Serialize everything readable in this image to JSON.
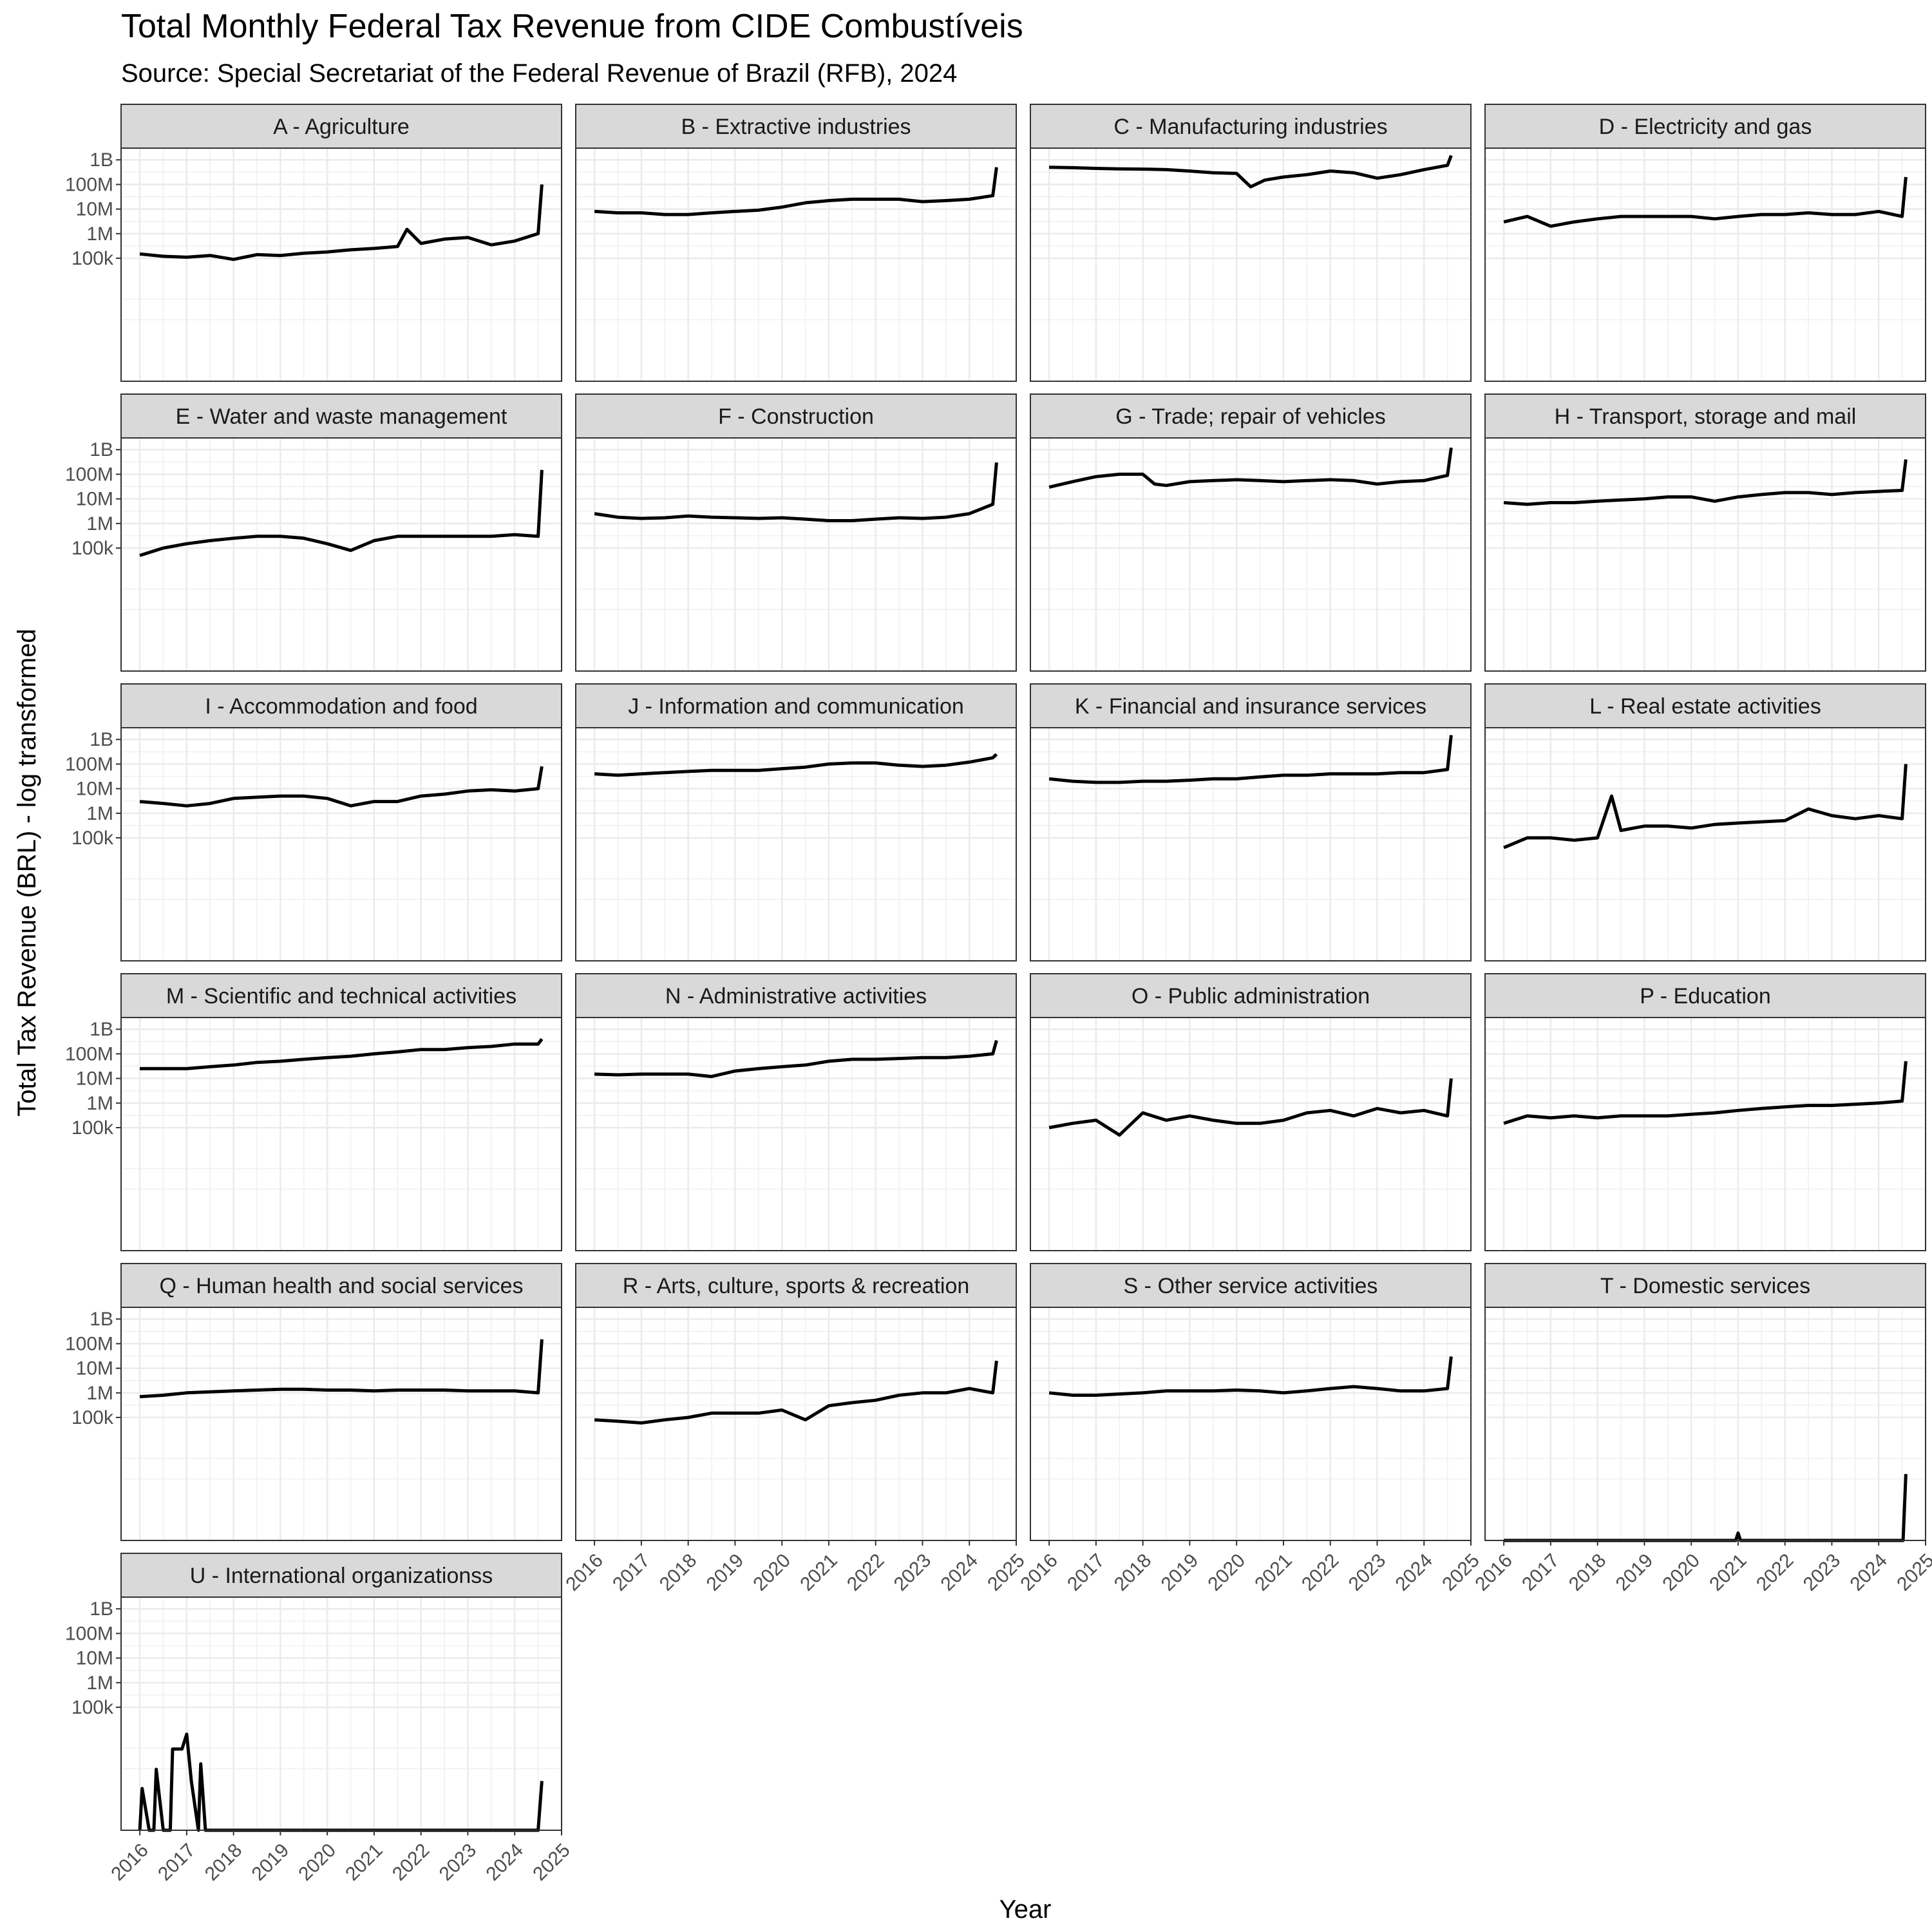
{
  "chart_data": {
    "type": "line",
    "facet": "small-multiples",
    "title": "Total Monthly Federal Tax Revenue from CIDE Combustíveis",
    "subtitle": "Source: Special Secretariat of the Federal Revenue of Brazil (RFB), 2024",
    "xlabel": "Year",
    "ylabel": "Total Tax Revenue (BRL) - log transformed",
    "x_ticks": [
      "2016",
      "2017",
      "2018",
      "2019",
      "2020",
      "2021",
      "2022",
      "2023",
      "2024",
      "2025"
    ],
    "xlim": [
      2015.6,
      2025.0
    ],
    "y_scale": "log10",
    "y_ticks": [
      {
        "value": 100000,
        "label": "100k"
      },
      {
        "value": 1000000,
        "label": "1M"
      },
      {
        "value": 10000000,
        "label": "10M"
      },
      {
        "value": 100000000,
        "label": "100M"
      },
      {
        "value": 1000000000,
        "label": "1B"
      }
    ],
    "ylim": [
      1,
      3000000000
    ],
    "grid": true,
    "series_color": "#000000",
    "series": [
      {
        "name": "A - Agriculture",
        "x": [
          2016.0,
          2016.5,
          2017.0,
          2017.5,
          2018.0,
          2018.5,
          2019.0,
          2019.5,
          2020.0,
          2020.5,
          2021.0,
          2021.5,
          2021.7,
          2022.0,
          2022.5,
          2023.0,
          2023.5,
          2024.0,
          2024.5,
          2024.58
        ],
        "y": [
          150000,
          120000,
          110000,
          130000,
          90000,
          140000,
          130000,
          160000,
          180000,
          220000,
          250000,
          300000,
          1500000,
          400000,
          600000,
          700000,
          350000,
          500000,
          1000000,
          100000000
        ]
      },
      {
        "name": "B - Extractive industries",
        "x": [
          2016.0,
          2016.5,
          2017.0,
          2017.5,
          2018.0,
          2018.5,
          2019.0,
          2019.5,
          2020.0,
          2020.5,
          2021.0,
          2021.5,
          2022.0,
          2022.5,
          2023.0,
          2023.5,
          2024.0,
          2024.5,
          2024.58
        ],
        "y": [
          8000000,
          7000000,
          7000000,
          6000000,
          6000000,
          7000000,
          8000000,
          9000000,
          12000000,
          18000000,
          22000000,
          25000000,
          25000000,
          25000000,
          20000000,
          22000000,
          25000000,
          35000000,
          500000000
        ]
      },
      {
        "name": "C - Manufacturing industries",
        "x": [
          2016.0,
          2016.5,
          2017.0,
          2017.5,
          2018.0,
          2018.5,
          2019.0,
          2019.5,
          2020.0,
          2020.3,
          2020.6,
          2021.0,
          2021.5,
          2022.0,
          2022.5,
          2023.0,
          2023.5,
          2024.0,
          2024.5,
          2024.58
        ],
        "y": [
          500000000,
          480000000,
          450000000,
          430000000,
          420000000,
          400000000,
          350000000,
          300000000,
          280000000,
          80000000,
          150000000,
          200000000,
          250000000,
          350000000,
          300000000,
          180000000,
          250000000,
          400000000,
          600000000,
          1500000000
        ]
      },
      {
        "name": "D - Electricity and gas",
        "x": [
          2016.0,
          2016.5,
          2017.0,
          2017.5,
          2018.0,
          2018.5,
          2019.0,
          2019.5,
          2020.0,
          2020.5,
          2021.0,
          2021.5,
          2022.0,
          2022.5,
          2023.0,
          2023.5,
          2024.0,
          2024.5,
          2024.58
        ],
        "y": [
          3000000,
          5000000,
          2000000,
          3000000,
          4000000,
          5000000,
          5000000,
          5000000,
          5000000,
          4000000,
          5000000,
          6000000,
          6000000,
          7000000,
          6000000,
          6000000,
          8000000,
          5000000,
          200000000
        ]
      },
      {
        "name": "E - Water and waste management",
        "x": [
          2016.0,
          2016.5,
          2017.0,
          2017.5,
          2018.0,
          2018.5,
          2019.0,
          2019.5,
          2020.0,
          2020.5,
          2021.0,
          2021.5,
          2022.0,
          2022.5,
          2023.0,
          2023.5,
          2024.0,
          2024.5,
          2024.58
        ],
        "y": [
          50000,
          100000,
          150000,
          200000,
          250000,
          300000,
          300000,
          250000,
          150000,
          80000,
          200000,
          300000,
          300000,
          300000,
          300000,
          300000,
          350000,
          300000,
          150000000
        ]
      },
      {
        "name": "F - Construction",
        "x": [
          2016.0,
          2016.5,
          2017.0,
          2017.5,
          2018.0,
          2018.5,
          2019.0,
          2019.5,
          2020.0,
          2020.5,
          2021.0,
          2021.5,
          2022.0,
          2022.5,
          2023.0,
          2023.5,
          2024.0,
          2024.5,
          2024.58
        ],
        "y": [
          2500000,
          1800000,
          1600000,
          1700000,
          2000000,
          1800000,
          1700000,
          1600000,
          1700000,
          1500000,
          1300000,
          1300000,
          1500000,
          1700000,
          1600000,
          1800000,
          2500000,
          6000000,
          300000000
        ]
      },
      {
        "name": "G - Trade; repair of vehicles",
        "x": [
          2016.0,
          2016.5,
          2017.0,
          2017.5,
          2018.0,
          2018.25,
          2018.5,
          2019.0,
          2019.5,
          2020.0,
          2020.5,
          2021.0,
          2021.5,
          2022.0,
          2022.5,
          2023.0,
          2023.5,
          2024.0,
          2024.5,
          2024.58
        ],
        "y": [
          30000000,
          50000000,
          80000000,
          100000000,
          100000000,
          40000000,
          35000000,
          50000000,
          55000000,
          60000000,
          55000000,
          50000000,
          55000000,
          60000000,
          55000000,
          40000000,
          50000000,
          55000000,
          90000000,
          1200000000
        ]
      },
      {
        "name": "H - Transport, storage and mail",
        "x": [
          2016.0,
          2016.5,
          2017.0,
          2017.5,
          2018.0,
          2018.5,
          2019.0,
          2019.5,
          2020.0,
          2020.5,
          2021.0,
          2021.5,
          2022.0,
          2022.5,
          2023.0,
          2023.5,
          2024.0,
          2024.5,
          2024.58
        ],
        "y": [
          7000000,
          6000000,
          7000000,
          7000000,
          8000000,
          9000000,
          10000000,
          12000000,
          12000000,
          8000000,
          12000000,
          15000000,
          18000000,
          18000000,
          15000000,
          18000000,
          20000000,
          22000000,
          400000000
        ]
      },
      {
        "name": "I - Accommodation and food",
        "x": [
          2016.0,
          2016.5,
          2017.0,
          2017.5,
          2018.0,
          2018.5,
          2019.0,
          2019.5,
          2020.0,
          2020.5,
          2021.0,
          2021.5,
          2022.0,
          2022.5,
          2023.0,
          2023.5,
          2024.0,
          2024.5,
          2024.58
        ],
        "y": [
          3000000,
          2500000,
          2000000,
          2500000,
          4000000,
          4500000,
          5000000,
          5000000,
          4000000,
          2000000,
          3000000,
          3000000,
          5000000,
          6000000,
          8000000,
          9000000,
          8000000,
          10000000,
          80000000
        ]
      },
      {
        "name": "J - Information and communication",
        "x": [
          2016.0,
          2016.5,
          2017.0,
          2017.5,
          2018.0,
          2018.5,
          2019.0,
          2019.5,
          2020.0,
          2020.5,
          2021.0,
          2021.5,
          2022.0,
          2022.5,
          2023.0,
          2023.5,
          2024.0,
          2024.5,
          2024.58
        ],
        "y": [
          40000000,
          35000000,
          40000000,
          45000000,
          50000000,
          55000000,
          55000000,
          55000000,
          65000000,
          75000000,
          100000000,
          110000000,
          110000000,
          90000000,
          80000000,
          90000000,
          120000000,
          180000000,
          250000000
        ]
      },
      {
        "name": "K - Financial and insurance services",
        "x": [
          2016.0,
          2016.5,
          2017.0,
          2017.5,
          2018.0,
          2018.5,
          2019.0,
          2019.5,
          2020.0,
          2020.5,
          2021.0,
          2021.5,
          2022.0,
          2022.5,
          2023.0,
          2023.5,
          2024.0,
          2024.5,
          2024.58
        ],
        "y": [
          25000000,
          20000000,
          18000000,
          18000000,
          20000000,
          20000000,
          22000000,
          25000000,
          25000000,
          30000000,
          35000000,
          35000000,
          40000000,
          40000000,
          40000000,
          45000000,
          45000000,
          60000000,
          1500000000
        ]
      },
      {
        "name": "L - Real estate activities",
        "x": [
          2016.0,
          2016.5,
          2017.0,
          2017.5,
          2018.0,
          2018.3,
          2018.5,
          2019.0,
          2019.5,
          2020.0,
          2020.5,
          2021.0,
          2021.5,
          2022.0,
          2022.5,
          2023.0,
          2023.5,
          2024.0,
          2024.5,
          2024.58
        ],
        "y": [
          40000,
          100000,
          100000,
          80000,
          100000,
          5000000,
          200000,
          300000,
          300000,
          250000,
          350000,
          400000,
          450000,
          500000,
          1500000,
          800000,
          600000,
          800000,
          600000,
          100000000
        ]
      },
      {
        "name": "M - Scientific and technical activities",
        "x": [
          2016.0,
          2016.5,
          2017.0,
          2017.5,
          2018.0,
          2018.5,
          2019.0,
          2019.5,
          2020.0,
          2020.5,
          2021.0,
          2021.5,
          2022.0,
          2022.5,
          2023.0,
          2023.5,
          2024.0,
          2024.5,
          2024.58
        ],
        "y": [
          25000000,
          25000000,
          25000000,
          30000000,
          35000000,
          45000000,
          50000000,
          60000000,
          70000000,
          80000000,
          100000000,
          120000000,
          150000000,
          150000000,
          180000000,
          200000000,
          250000000,
          250000000,
          400000000
        ]
      },
      {
        "name": "N - Administrative activities",
        "x": [
          2016.0,
          2016.5,
          2017.0,
          2017.5,
          2018.0,
          2018.5,
          2019.0,
          2019.5,
          2020.0,
          2020.5,
          2021.0,
          2021.5,
          2022.0,
          2022.5,
          2023.0,
          2023.5,
          2024.0,
          2024.5,
          2024.58
        ],
        "y": [
          15000000,
          14000000,
          15000000,
          15000000,
          15000000,
          12000000,
          20000000,
          25000000,
          30000000,
          35000000,
          50000000,
          60000000,
          60000000,
          65000000,
          70000000,
          70000000,
          80000000,
          100000000,
          350000000
        ]
      },
      {
        "name": "O - Public administration",
        "x": [
          2016.0,
          2016.5,
          2017.0,
          2017.5,
          2018.0,
          2018.5,
          2019.0,
          2019.5,
          2020.0,
          2020.5,
          2021.0,
          2021.5,
          2022.0,
          2022.5,
          2023.0,
          2023.5,
          2024.0,
          2024.5,
          2024.58
        ],
        "y": [
          100000,
          150000,
          200000,
          50000,
          400000,
          200000,
          300000,
          200000,
          150000,
          150000,
          200000,
          400000,
          500000,
          300000,
          600000,
          400000,
          500000,
          300000,
          10000000
        ]
      },
      {
        "name": "P - Education",
        "x": [
          2016.0,
          2016.5,
          2017.0,
          2017.5,
          2018.0,
          2018.5,
          2019.0,
          2019.5,
          2020.0,
          2020.5,
          2021.0,
          2021.5,
          2022.0,
          2022.5,
          2023.0,
          2023.5,
          2024.0,
          2024.5,
          2024.58
        ],
        "y": [
          150000,
          300000,
          250000,
          300000,
          250000,
          300000,
          300000,
          300000,
          350000,
          400000,
          500000,
          600000,
          700000,
          800000,
          800000,
          900000,
          1000000,
          1200000,
          50000000
        ]
      },
      {
        "name": "Q - Human health and social services",
        "x": [
          2016.0,
          2016.5,
          2017.0,
          2017.5,
          2018.0,
          2018.5,
          2019.0,
          2019.5,
          2020.0,
          2020.5,
          2021.0,
          2021.5,
          2022.0,
          2022.5,
          2023.0,
          2023.5,
          2024.0,
          2024.5,
          2024.58
        ],
        "y": [
          700000,
          800000,
          1000000,
          1100000,
          1200000,
          1300000,
          1400000,
          1400000,
          1300000,
          1300000,
          1200000,
          1300000,
          1300000,
          1300000,
          1200000,
          1200000,
          1200000,
          1000000,
          150000000
        ]
      },
      {
        "name": "R - Arts, culture, sports & recreation",
        "x": [
          2016.0,
          2016.5,
          2017.0,
          2017.5,
          2018.0,
          2018.5,
          2019.0,
          2019.5,
          2020.0,
          2020.5,
          2021.0,
          2021.5,
          2022.0,
          2022.5,
          2023.0,
          2023.5,
          2024.0,
          2024.5,
          2024.58
        ],
        "y": [
          80000,
          70000,
          60000,
          80000,
          100000,
          150000,
          150000,
          150000,
          200000,
          80000,
          300000,
          400000,
          500000,
          800000,
          1000000,
          1000000,
          1500000,
          1000000,
          20000000
        ]
      },
      {
        "name": "S - Other service activities",
        "x": [
          2016.0,
          2016.5,
          2017.0,
          2017.5,
          2018.0,
          2018.5,
          2019.0,
          2019.5,
          2020.0,
          2020.5,
          2021.0,
          2021.5,
          2022.0,
          2022.5,
          2023.0,
          2023.5,
          2024.0,
          2024.5,
          2024.58
        ],
        "y": [
          1000000,
          800000,
          800000,
          900000,
          1000000,
          1200000,
          1200000,
          1200000,
          1300000,
          1200000,
          1000000,
          1200000,
          1500000,
          1800000,
          1500000,
          1200000,
          1200000,
          1500000,
          30000000
        ]
      },
      {
        "name": "T - Domestic services",
        "x": [
          2016.0,
          2017.0,
          2018.0,
          2019.0,
          2020.0,
          2020.95,
          2021.0,
          2021.05,
          2022.0,
          2023.0,
          2024.0,
          2024.52,
          2024.58
        ],
        "y": [
          1,
          1,
          1,
          1,
          1,
          1,
          2,
          1,
          1,
          1,
          1,
          1,
          500
        ]
      },
      {
        "name": "U - International organizationss",
        "x": [
          2016.0,
          2016.05,
          2016.2,
          2016.3,
          2016.35,
          2016.5,
          2016.6,
          2016.65,
          2016.7,
          2016.9,
          2017.0,
          2017.1,
          2017.25,
          2017.3,
          2017.4,
          2017.5,
          2018.0,
          2019.0,
          2020.0,
          2021.0,
          2022.0,
          2023.0,
          2024.0,
          2024.5,
          2024.58
        ],
        "y": [
          1,
          50,
          1,
          1,
          300,
          1,
          1,
          1,
          2000,
          2000,
          8000,
          100,
          1,
          500,
          1,
          1,
          1,
          1,
          1,
          1,
          1,
          1,
          1,
          1,
          100
        ]
      }
    ]
  }
}
